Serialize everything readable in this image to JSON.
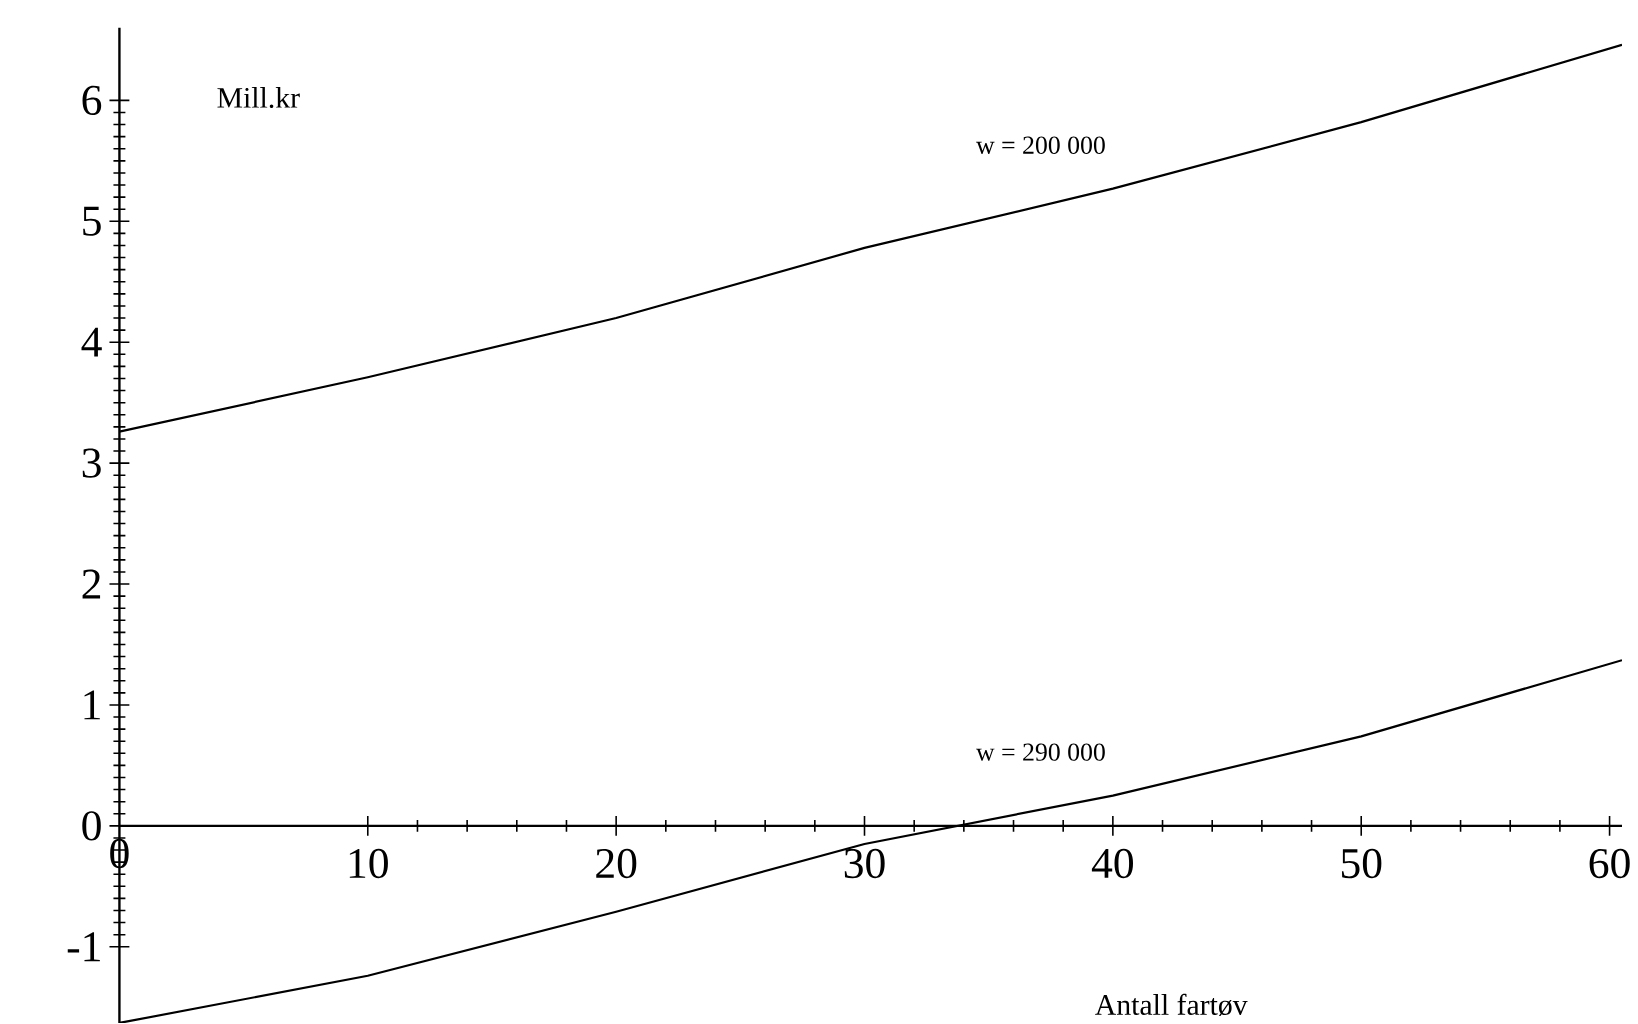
{
  "chart_data": {
    "type": "line",
    "xlabel": "Antall fartøv",
    "ylabel": "Mill.kr",
    "xlim": [
      0,
      60.5
    ],
    "ylim": [
      -1.63,
      6.6
    ],
    "xticks": [
      0,
      10,
      20,
      30,
      40,
      50,
      60
    ],
    "yticks": [
      -1,
      0,
      1,
      2,
      3,
      4,
      5,
      6
    ],
    "series": [
      {
        "name": "w = 200 000",
        "color": "#000000",
        "x": [
          0,
          10,
          20,
          30,
          40,
          50,
          60.5
        ],
        "values": [
          3.26,
          3.71,
          4.2,
          4.78,
          5.27,
          5.82,
          6.46
        ]
      },
      {
        "name": "w = 290 000",
        "color": "#000000",
        "x": [
          0,
          10,
          20,
          30,
          40,
          50,
          60.5
        ],
        "values": [
          -1.63,
          -1.24,
          -0.71,
          -0.15,
          0.25,
          0.74,
          1.37
        ]
      }
    ],
    "grid": false,
    "marker": "none",
    "line_style": "solid"
  }
}
